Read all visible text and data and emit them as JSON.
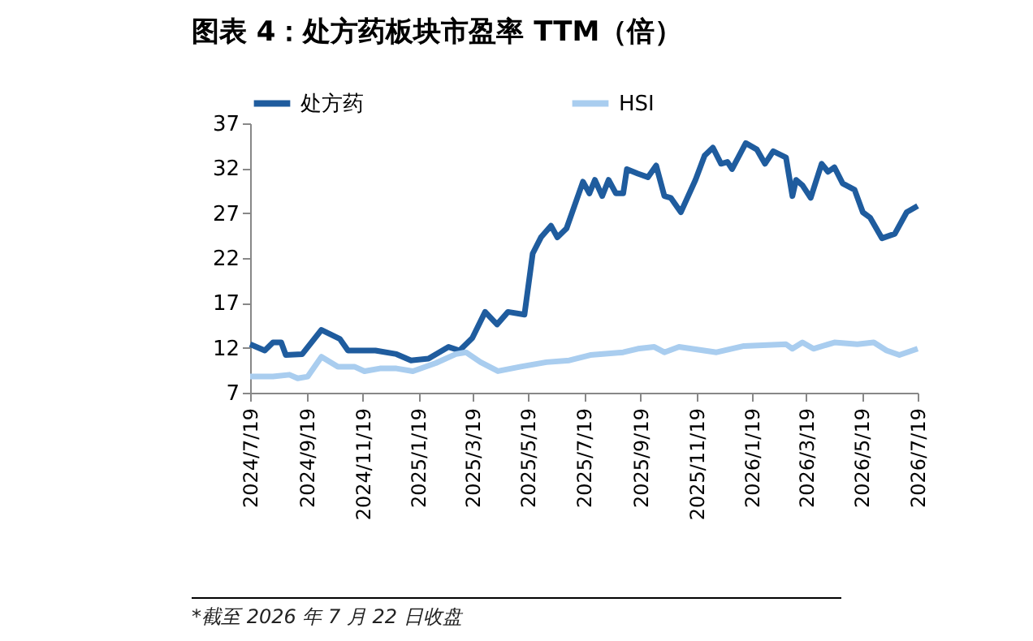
{
  "chart_data": {
    "type": "line",
    "title": "图表 4：处方药板块市盈率 TTM（倍）",
    "legend": "top",
    "xlim": [
      "2024-07-19",
      "2026-07-19"
    ],
    "xticks": [
      {
        "value": "2024-07-19",
        "label": "2024/7/19"
      },
      {
        "value": "2024-09-19",
        "label": "2024/9/19"
      },
      {
        "value": "2024-11-19",
        "label": "2024/11/19"
      },
      {
        "value": "2025-01-19",
        "label": "2025/1/19"
      },
      {
        "value": "2025-03-19",
        "label": "2025/3/19"
      },
      {
        "value": "2025-05-19",
        "label": "2025/5/19"
      },
      {
        "value": "2025-07-19",
        "label": "2025/7/19"
      },
      {
        "value": "2025-09-19",
        "label": "2025/9/19"
      },
      {
        "value": "2025-11-19",
        "label": "2025/11/19"
      },
      {
        "value": "2026-01-19",
        "label": "2026/1/19"
      },
      {
        "value": "2026-03-19",
        "label": "2026/3/19"
      },
      {
        "value": "2026-05-19",
        "label": "2026/5/19"
      },
      {
        "value": "2026-07-19",
        "label": "2026/7/19"
      }
    ],
    "ylim": [
      7,
      37
    ],
    "yticks": [
      7,
      12,
      17,
      22,
      27,
      32,
      37
    ],
    "annotations": [
      "*截至 2026 年 7 月 22 日收盘"
    ],
    "series": [
      {
        "name": "处方药",
        "color": "#1f5c9e",
        "x": [
          "2024-07-19",
          "2024-08-04",
          "2024-08-13",
          "2024-08-22",
          "2024-08-27",
          "2024-09-14",
          "2024-10-05",
          "2024-10-25",
          "2024-11-03",
          "2024-12-03",
          "2024-12-26",
          "2025-01-11",
          "2025-01-30",
          "2025-02-21",
          "2025-03-05",
          "2025-03-19",
          "2025-04-02",
          "2025-04-15",
          "2025-04-27",
          "2025-05-15",
          "2025-05-24",
          "2025-06-02",
          "2025-06-13",
          "2025-06-20",
          "2025-06-30",
          "2025-07-18",
          "2025-07-25",
          "2025-07-31",
          "2025-08-08",
          "2025-08-15",
          "2025-08-23",
          "2025-08-31",
          "2025-09-04",
          "2025-09-16",
          "2025-09-27",
          "2025-10-06",
          "2025-10-15",
          "2025-10-22",
          "2025-11-02",
          "2025-11-18",
          "2025-11-28",
          "2025-12-07",
          "2025-12-16",
          "2025-12-23",
          "2025-12-28",
          "2026-01-12",
          "2026-01-24",
          "2026-02-02",
          "2026-02-11",
          "2026-02-25",
          "2026-03-04",
          "2026-03-08",
          "2026-03-15",
          "2026-03-24",
          "2026-04-05",
          "2026-04-12",
          "2026-04-19",
          "2026-04-28",
          "2026-05-11",
          "2026-05-20",
          "2026-05-28",
          "2026-06-10",
          "2026-06-24",
          "2026-07-07",
          "2026-07-19"
        ],
        "values": [
          12.4,
          11.7,
          12.6,
          12.6,
          11.2,
          11.3,
          14.0,
          13.0,
          11.7,
          11.7,
          11.3,
          10.6,
          10.8,
          12.1,
          11.7,
          13.1,
          16.0,
          14.6,
          16.0,
          15.7,
          22.5,
          24.3,
          25.6,
          24.3,
          25.3,
          30.5,
          29.2,
          30.7,
          28.9,
          30.7,
          29.2,
          29.2,
          31.9,
          31.4,
          31.0,
          32.3,
          28.9,
          28.7,
          27.1,
          30.7,
          33.4,
          34.3,
          32.5,
          32.7,
          31.9,
          34.8,
          34.1,
          32.5,
          33.9,
          33.2,
          28.9,
          30.7,
          30.1,
          28.7,
          32.5,
          31.6,
          32.1,
          30.3,
          29.6,
          27.1,
          26.5,
          24.2,
          24.7,
          27.1,
          27.8
        ]
      },
      {
        "name": "HSI",
        "color": "#a9cdef",
        "x": [
          "2024-07-19",
          "2024-08-13",
          "2024-08-31",
          "2024-09-09",
          "2024-09-20",
          "2024-10-05",
          "2024-10-23",
          "2024-11-10",
          "2024-11-21",
          "2024-12-08",
          "2024-12-26",
          "2025-01-13",
          "2025-02-07",
          "2025-03-01",
          "2025-03-12",
          "2025-03-28",
          "2025-04-16",
          "2025-05-11",
          "2025-06-08",
          "2025-07-03",
          "2025-07-26",
          "2025-08-31",
          "2025-09-16",
          "2025-10-04",
          "2025-10-15",
          "2025-10-31",
          "2025-12-11",
          "2026-01-10",
          "2026-02-25",
          "2026-03-04",
          "2026-03-15",
          "2026-03-27",
          "2026-04-19",
          "2026-05-14",
          "2026-06-01",
          "2026-06-15",
          "2026-06-29",
          "2026-07-19"
        ],
        "values": [
          8.8,
          8.8,
          9.0,
          8.6,
          8.8,
          11.0,
          9.9,
          9.9,
          9.4,
          9.7,
          9.7,
          9.4,
          10.3,
          11.3,
          11.5,
          10.4,
          9.4,
          9.9,
          10.4,
          10.6,
          11.2,
          11.5,
          11.9,
          12.1,
          11.5,
          12.1,
          11.5,
          12.2,
          12.4,
          11.9,
          12.6,
          11.9,
          12.6,
          12.4,
          12.6,
          11.7,
          11.2,
          11.9
        ]
      }
    ]
  }
}
